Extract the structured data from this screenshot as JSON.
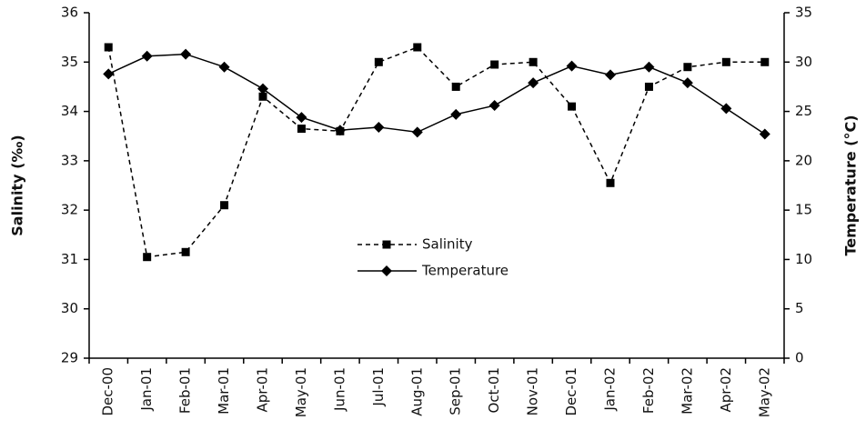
{
  "chart_data": {
    "type": "line",
    "categories": [
      "Dec-00",
      "Jan-01",
      "Feb-01",
      "Mar-01",
      "Apr-01",
      "May-01",
      "Jun-01",
      "Jul-01",
      "Aug-01",
      "Sep-01",
      "Oct-01",
      "Nov-01",
      "Dec-01",
      "Jan-02",
      "Feb-02",
      "Mar-02",
      "Apr-02",
      "May-02"
    ],
    "y_label": "Salinity (‰)",
    "y2_label": "Temperature (°C)",
    "ylim": [
      29,
      36
    ],
    "yticks": [
      29,
      30,
      31,
      32,
      33,
      34,
      35,
      36
    ],
    "y2lim": [
      0,
      35
    ],
    "y2ticks": [
      0,
      5,
      10,
      15,
      20,
      25,
      30,
      35
    ],
    "series": [
      {
        "name": "Salinity",
        "color": "#000000",
        "line_style": "dashed",
        "marker": "square",
        "values": [
          35.3,
          31.05,
          31.15,
          32.1,
          34.3,
          33.65,
          33.6,
          35.0,
          35.3,
          34.5,
          34.95,
          35.0,
          34.1,
          32.55,
          34.5,
          34.9,
          35.0,
          35.0
        ]
      },
      {
        "name": "Temperature",
        "color": "#000000",
        "line_style": "solid",
        "marker": "diamond",
        "axis": "y2",
        "values": [
          28.8,
          30.6,
          30.8,
          29.5,
          27.3,
          24.4,
          23.1,
          23.4,
          22.9,
          24.7,
          25.6,
          27.9,
          29.6,
          28.7,
          29.5,
          27.9,
          25.3,
          22.7
        ]
      }
    ]
  }
}
